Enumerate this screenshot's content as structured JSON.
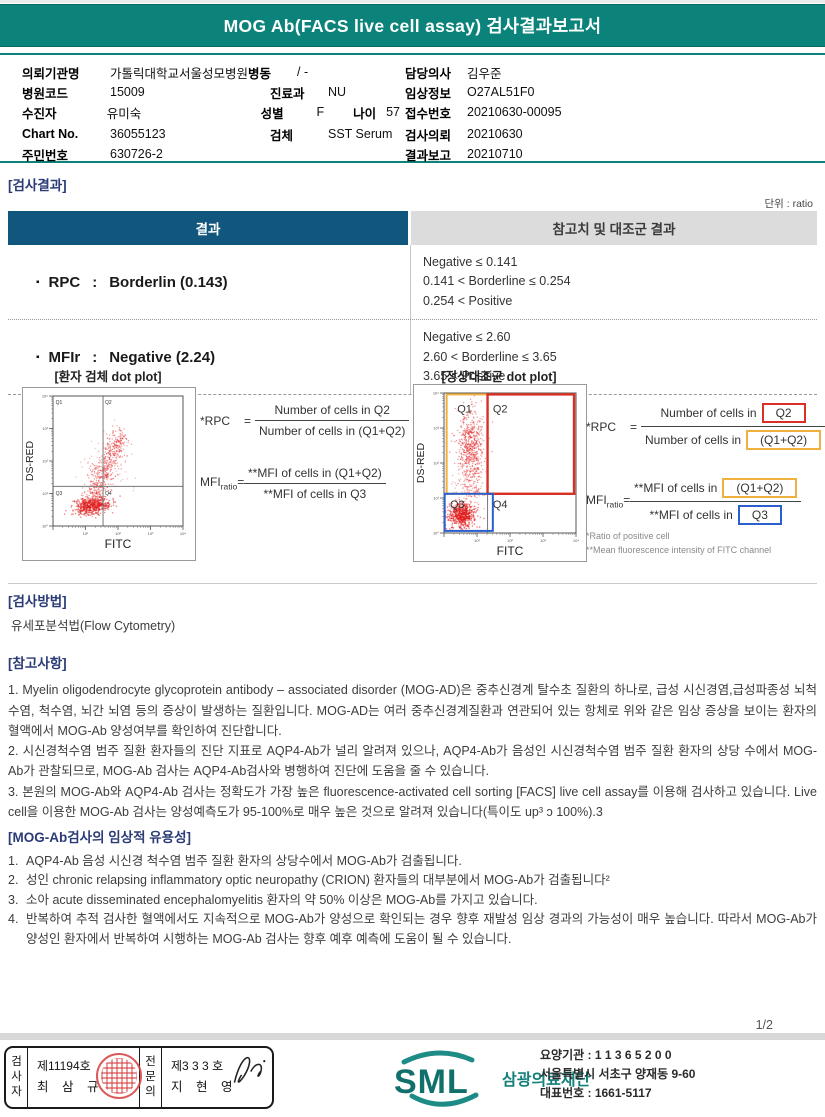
{
  "banner": {
    "title": "MOG Ab(FACS live cell assay) 검사결과보고서"
  },
  "patient_info": {
    "left": {
      "row1": {
        "label": "의뢰기관명",
        "value": "가톨릭대학교서울성모병원",
        "label2": "병동",
        "value2": "/ -"
      },
      "row2": {
        "label": "병원코드",
        "value": "15009",
        "label2": "진료과",
        "value2": "NU"
      },
      "row3": {
        "label": "수진자",
        "value": "유미숙",
        "label2": "성별",
        "value2": "F",
        "label3": "나이",
        "value3": "57"
      },
      "row4": {
        "label": "Chart No.",
        "value": "36055123",
        "label2": "검체",
        "value2": "SST Serum"
      },
      "row5": {
        "label": "주민번호",
        "value": "630726-2"
      }
    },
    "right": {
      "row1": {
        "label": "담당의사",
        "value": "김우준"
      },
      "row2": {
        "label": "임상정보",
        "value": "O27AL51F0"
      },
      "row3": {
        "label": "접수번호",
        "value": "20210630-00095"
      },
      "row4": {
        "label": "검사의뢰",
        "value": "20210630"
      },
      "row5": {
        "label": "결과보고",
        "value": "20210710"
      }
    }
  },
  "results": {
    "section_title": "[검사결과]",
    "unit_label": "단위 : ratio",
    "col_result": "결과",
    "col_reference": "참고치 및 대조군 결과",
    "bullet": "▪",
    "rows": [
      {
        "name": "RPC",
        "colon": ":",
        "value": "Borderlin (0.143)",
        "refs": [
          "Negative ≤ 0.141",
          "0.141 < Borderline ≤ 0.254",
          "0.254 < Positive"
        ]
      },
      {
        "name": "MFIr",
        "colon": ":",
        "value": "Negative (2.24)",
        "refs": [
          "Negative ≤ 2.60",
          "2.60 < Borderline ≤ 3.65",
          "3.65 < Positive"
        ]
      }
    ]
  },
  "plots": {
    "y_axis": "DS-RED",
    "x_axis": "FITC",
    "quadrant_labels": [
      "Q1",
      "Q2",
      "Q3",
      "Q4"
    ],
    "y_ticks": [
      "10⁰",
      "10¹",
      "10²",
      "10³",
      "10⁴"
    ],
    "x_ticks": [
      "10¹",
      "10²",
      "10³",
      "10⁴"
    ],
    "patient": {
      "title": "[환자 검체 dot plot]",
      "type": "scatter"
    },
    "control": {
      "title": "[정상대조군 dot plot]",
      "type": "scatter"
    },
    "formulas": {
      "rpc_label": "*RPC",
      "eq": "=",
      "rpc_numerator": "Number of cells in Q2",
      "rpc_denominator": "Number of cells in (Q1+Q2)",
      "mfi_label": "MFI",
      "mfi_sub": "ratio",
      "mfi_eq": "=",
      "mfi_numerator": "**MFI of cells in (Q1+Q2)",
      "mfi_denominator": "**MFI of cells in Q3",
      "cells_prefix": "Number of cells in",
      "mfi_prefix": "**MFI of cells in",
      "rpc_num_box": "Q2",
      "rpc_den_box": "(Q1+Q2)",
      "mfi_num_box": "(Q1+Q2)",
      "mfi_den_box": "Q3",
      "footnote1": "*Ratio of positive cell",
      "footnote2": "**Mean  fluorescence intensity of FITC channel"
    }
  },
  "method": {
    "title": "[검사방법]",
    "text": "유세포분석법(Flow Cytometry)"
  },
  "notes": {
    "title": "[참고사항]",
    "p1": "1. Myelin oligodendrocyte glycoprotein antibody – associated disorder (MOG-AD)은 중추신경계 탈수초 질환의 하나로, 급성 시신경염,급성파종성 뇌척수염, 척수염, 뇌간 뇌염 등의 증상이 발생하는 질환입니다. MOG-AD는 여러 중추신경계질환과 연관되어 있는 항체로 위와 같은 임상 증상을 보이는 환자의 혈액에서 MOG-Ab 양성여부를 확인하여 진단합니다.",
    "p2": "2. 시신경척수염 범주 질환 환자들의 진단 지표로 AQP4-Ab가 널리 알려져 있으나, AQP4-Ab가 음성인 시신경척수염 범주 질환 환자의 상당 수에서 MOG-Ab가 관찰되므로, MOG-Ab 검사는 AQP4-Ab검사와 병행하여 진단에 도움을 줄 수 있습니다.",
    "p3": "3. 본원의 MOG-Ab와 AQP4-Ab 검사는 정확도가 가장 높은 fluorescence-activated cell sorting [FACS] live cell assay를 이용해 검사하고 있습니다. Live cell을 이용한 MOG-Ab 검사는 양성예측도가 95-100%로 매우 높은 것으로 알려져 있습니다(특이도 up³ ɔ 100%).3"
  },
  "usefulness": {
    "title": "[MOG-Ab검사의 임상적 유용성]",
    "items": [
      {
        "num": "1.",
        "text": "AQP4-Ab 음성 시신경 척수염 범주 질환 환자의 상당수에서 MOG-Ab가 검출됩니다."
      },
      {
        "num": "2.",
        "text": "성인 chronic relapsing inflammatory optic neuropathy (CRION) 환자들의 대부분에서 MOG-Ab가 검출됩니다²"
      },
      {
        "num": "3.",
        "text": "소아 acute disseminated encephalomyelitis 환자의 약 50% 이상은 MOG-Ab를 가지고 있습니다."
      },
      {
        "num": "4.",
        "text": "반복하여 추적 검사한 혈액에서도 지속적으로 MOG-Ab가 양성으로 확인되는 경우 향후 재발성 임상 경과의 가능성이 매우 높습니다. 따라서 MOG-Ab가 양성인 환자에서 반복하여 시행하는 MOG-Ab 검사는 향후 예후 예측에 도움이 될 수 있습니다."
      }
    ]
  },
  "page_number": "1/2",
  "footer": {
    "examiner_role": "검사자",
    "examiner_cert": "제11194호",
    "examiner_name": "최 삼 규",
    "specialist_role": "전문의",
    "specialist_cert": "제3 3 3 호",
    "specialist_name": "지 현 영",
    "logo_text": "SML",
    "org_name": "삼광의료재단",
    "line1": "요양기관 : 1 1 3 6 5 2 0 0",
    "line2": "서울특별시 서초구 양재동 9-60",
    "line3": "대표번호 : 1661-5117"
  },
  "colors": {
    "banner_teal": "#0c837a",
    "header_blue": "#10567d",
    "heading_navy": "#2a3b76",
    "scatter_red": "#e01818",
    "box_red": "#d93025",
    "box_orange": "#f0b040",
    "box_blue": "#2b5fd0"
  }
}
